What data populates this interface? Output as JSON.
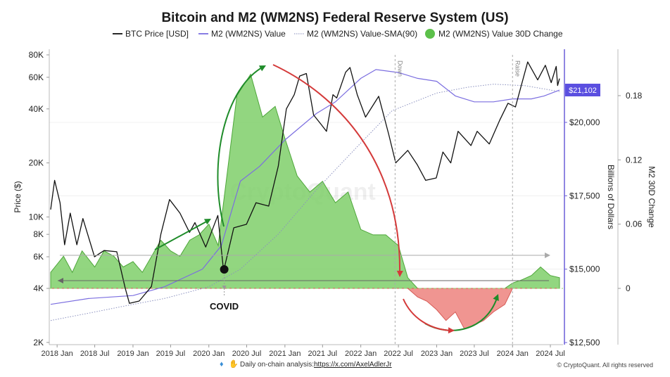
{
  "chart_data": {
    "type": "line",
    "title": "Bitcoin and M2 (WM2NS) Federal Reserve System (US)",
    "legend": [
      {
        "name": "BTC Price [USD]",
        "color": "#111111",
        "style": "line"
      },
      {
        "name": "M2 (WM2NS) Value",
        "color": "#7b6ee0",
        "style": "line"
      },
      {
        "name": "M2 (WM2NS) Value-SMA(90)",
        "color": "#9aa0c8",
        "style": "dotted"
      },
      {
        "name": "M2 (WM2NS) Value 30D Change",
        "color": "#5cc04a",
        "style": "dot"
      }
    ],
    "legend_placement": "top",
    "x_ticks": [
      "2018 Jan",
      "2018 Jul",
      "2019 Jan",
      "2019 Jul",
      "2020 Jan",
      "2020 Jul",
      "2021 Jan",
      "2021 Jul",
      "2022 Jan",
      "2022 Jul",
      "2023 Jan",
      "2023 Jul",
      "2024 Jan",
      "2024 Jul"
    ],
    "left_axis": {
      "label": "Price ($)",
      "scale": "log",
      "ticks": [
        "80K",
        "60K",
        "40K",
        "20K",
        "10K",
        "8K",
        "6K",
        "4K",
        "2K"
      ],
      "range": [
        2000,
        80000
      ]
    },
    "right_axis_1": {
      "label": "Billions of Dollars",
      "ticks": [
        "$20,000",
        "$17,500",
        "$15,000",
        "$12,500"
      ],
      "range": [
        12500,
        21500
      ]
    },
    "right_axis_2": {
      "label": "M2 30D Change",
      "ticks": [
        "0.18",
        "0.12",
        "0.06",
        "0"
      ],
      "range": [
        -0.05,
        0.2
      ]
    },
    "vertical_markers": [
      "Down",
      "Raise"
    ],
    "annotation": "COVID",
    "current_value_badge": "$21,102",
    "series": [
      {
        "name": "BTC Price [USD]",
        "axis": "left",
        "x": [
          "2017-12-01",
          "2017-12-20",
          "2018-01-15",
          "2018-02-06",
          "2018-03-05",
          "2018-04-06",
          "2018-05-05",
          "2018-06-30",
          "2018-08-15",
          "2018-10-15",
          "2018-11-25",
          "2018-12-15",
          "2019-01-31",
          "2019-03-31",
          "2019-05-15",
          "2019-06-26",
          "2019-08-15",
          "2019-09-30",
          "2019-10-26",
          "2019-12-17",
          "2020-02-13",
          "2020-03-12",
          "2020-04-30",
          "2020-06-30",
          "2020-08-15",
          "2020-10-15",
          "2020-11-30",
          "2021-01-08",
          "2021-02-15",
          "2021-03-13",
          "2021-04-14",
          "2021-05-19",
          "2021-06-22",
          "2021-07-20",
          "2021-08-20",
          "2021-09-07",
          "2021-10-20",
          "2021-11-10",
          "2021-12-15",
          "2022-01-24",
          "2022-03-28",
          "2022-05-15",
          "2022-06-18",
          "2022-08-15",
          "2022-09-30",
          "2022-11-09",
          "2022-12-30",
          "2023-01-31",
          "2023-03-10",
          "2023-04-14",
          "2023-06-15",
          "2023-07-15",
          "2023-09-11",
          "2023-10-31",
          "2023-12-10",
          "2024-01-15",
          "2024-03-14",
          "2024-05-01",
          "2024-06-07",
          "2024-07-05",
          "2024-07-29",
          "2024-08-05",
          "2024-08-14"
        ],
        "values": [
          11000,
          16000,
          12000,
          7000,
          10500,
          7000,
          9800,
          6000,
          6500,
          6400,
          4000,
          3300,
          3400,
          4100,
          8000,
          12500,
          10500,
          8200,
          9300,
          6800,
          10200,
          5000,
          8700,
          9100,
          12000,
          11500,
          19200,
          40000,
          48000,
          61000,
          63000,
          37000,
          33000,
          30000,
          48000,
          46000,
          64000,
          68000,
          48000,
          36000,
          47000,
          29000,
          20000,
          23500,
          19500,
          16000,
          16500,
          23000,
          20000,
          30000,
          25000,
          30000,
          25500,
          34500,
          43000,
          41000,
          73000,
          58000,
          70000,
          56000,
          69000,
          54000,
          59000
        ]
      },
      {
        "name": "M2 (WM2NS) Value",
        "axis": "right_1",
        "x": [
          "2017-12-01",
          "2018-06-01",
          "2019-01-01",
          "2019-06-01",
          "2019-12-01",
          "2020-03-01",
          "2020-06-01",
          "2020-09-01",
          "2021-01-01",
          "2021-06-01",
          "2021-09-01",
          "2022-01-01",
          "2022-03-15",
          "2022-07-01",
          "2022-10-01",
          "2023-01-01",
          "2023-04-01",
          "2023-07-01",
          "2023-10-01",
          "2024-01-01",
          "2024-04-01",
          "2024-06-01",
          "2024-08-14"
        ],
        "values": [
          13800,
          14000,
          14100,
          14400,
          15000,
          15800,
          18000,
          18500,
          19400,
          20300,
          20700,
          21500,
          21800,
          21700,
          21500,
          21400,
          20900,
          20700,
          20700,
          20800,
          20800,
          20900,
          21100
        ]
      },
      {
        "name": "M2 (WM2NS) Value-SMA(90)",
        "axis": "right_1",
        "x": [
          "2017-12-01",
          "2018-06-01",
          "2019-01-01",
          "2019-06-01",
          "2020-01-01",
          "2020-06-01",
          "2020-12-01",
          "2021-06-01",
          "2022-01-01",
          "2022-06-01",
          "2023-01-01",
          "2023-06-01",
          "2023-10-01",
          "2024-03-01",
          "2024-08-14"
        ],
        "values": [
          13250,
          13500,
          13800,
          14000,
          14400,
          15000,
          16200,
          17700,
          19300,
          20400,
          21000,
          21200,
          21300,
          21250,
          21050
        ]
      },
      {
        "name": "M2 (WM2NS) Value 30D Change",
        "axis": "right_2",
        "x": [
          "2017-12-01",
          "2018-02-01",
          "2018-03-15",
          "2018-05-01",
          "2018-07-01",
          "2018-08-15",
          "2018-10-01",
          "2018-11-15",
          "2019-01-01",
          "2019-02-15",
          "2019-04-01",
          "2019-05-15",
          "2019-07-01",
          "2019-08-15",
          "2019-10-01",
          "2019-11-15",
          "2020-01-01",
          "2020-02-15",
          "2020-03-31",
          "2020-05-15",
          "2020-07-20",
          "2020-09-15",
          "2020-11-15",
          "2021-01-01",
          "2021-03-01",
          "2021-05-01",
          "2021-07-01",
          "2021-09-01",
          "2021-11-01",
          "2022-01-01",
          "2022-03-01",
          "2022-05-01",
          "2022-07-01",
          "2022-08-15",
          "2022-10-01",
          "2022-11-15",
          "2023-01-01",
          "2023-02-15",
          "2023-04-01",
          "2023-05-15",
          "2023-06-20",
          "2023-08-15",
          "2023-10-01",
          "2023-11-25",
          "2024-01-01",
          "2024-02-15",
          "2024-04-01",
          "2024-05-15",
          "2024-07-01",
          "2024-08-14"
        ],
        "values": [
          0.015,
          0.03,
          0.015,
          0.035,
          0.02,
          0.035,
          0.03,
          0.02,
          0.025,
          0.015,
          0.03,
          0.045,
          0.035,
          0.03,
          0.045,
          0.05,
          0.06,
          0.04,
          0.11,
          0.18,
          0.2,
          0.16,
          0.17,
          0.14,
          0.105,
          0.09,
          0.1,
          0.08,
          0.09,
          0.055,
          0.05,
          0.05,
          0.04,
          0.01,
          -0.008,
          -0.012,
          -0.02,
          -0.03,
          -0.022,
          -0.038,
          -0.035,
          -0.03,
          -0.022,
          -0.015,
          0.005,
          0.008,
          0.012,
          0.02,
          0.012,
          0.01
        ]
      }
    ]
  },
  "footer": {
    "credit_prefix": "Daily on-chain analysis: ",
    "credit_link": "https://x.com/AxelAdlerJr",
    "copyright": "© CryptoQuant. All rights reserved",
    "watermark": "CryptoQuant"
  }
}
